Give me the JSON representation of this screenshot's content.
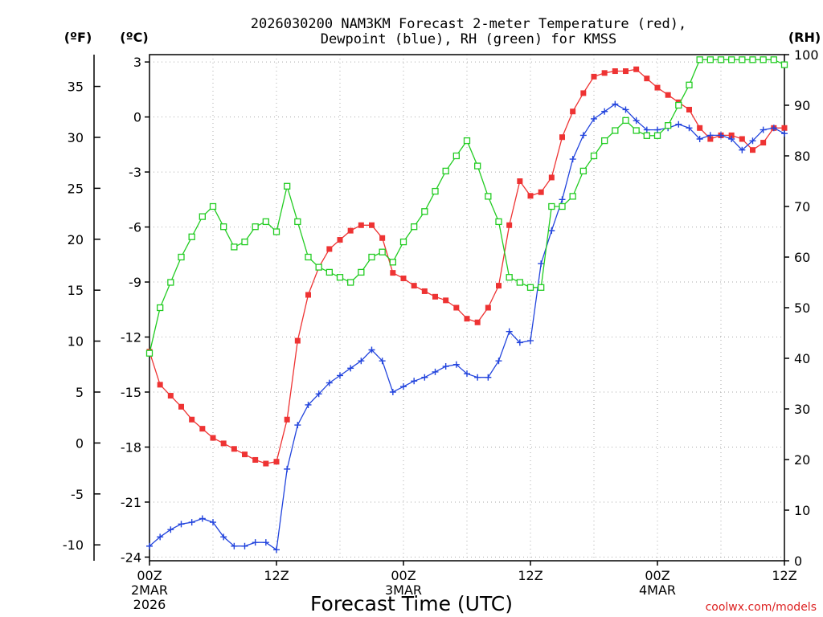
{
  "chart_data": {
    "type": "line",
    "title": "2026030200 NAM3KM Forecast 2-meter Temperature (red), Dewpoint (blue), RH (green) for KMSS",
    "title_lines": [
      "2026030200 NAM3KM Forecast 2-meter Temperature (red),",
      "Dewpoint (blue), RH (green) for KMSS"
    ],
    "xlabel": "Forecast Time (UTC)",
    "credit": "coolwx.com/models",
    "x_hours_range": [
      0,
      60
    ],
    "x_ticks": [
      {
        "hour": 0,
        "label": "00Z",
        "sub": [
          "2MAR",
          "2026"
        ]
      },
      {
        "hour": 12,
        "label": "12Z",
        "sub": []
      },
      {
        "hour": 24,
        "label": "00Z",
        "sub": [
          "3MAR"
        ]
      },
      {
        "hour": 36,
        "label": "12Z",
        "sub": []
      },
      {
        "hour": 48,
        "label": "00Z",
        "sub": [
          "4MAR"
        ]
      },
      {
        "hour": 60,
        "label": "12Z",
        "sub": []
      }
    ],
    "axes": {
      "fahrenheit": {
        "label": "(ºF)",
        "ticks": [
          35,
          30,
          25,
          20,
          15,
          10,
          5,
          0,
          -5,
          -10
        ]
      },
      "celsius": {
        "label": "(ºC)",
        "range": [
          -24.2,
          3.4
        ],
        "ticks": [
          3,
          0,
          -3,
          -6,
          -9,
          -12,
          -15,
          -18,
          -21,
          -24
        ]
      },
      "rh": {
        "label": "(RH)",
        "range": [
          0,
          100
        ],
        "ticks": [
          100,
          90,
          80,
          70,
          60,
          50,
          40,
          30,
          20,
          10,
          0
        ]
      }
    },
    "series": [
      {
        "name": "2-meter Temperature",
        "color": "#ee3333",
        "marker": "filled-square",
        "axis": "celsius",
        "x": [
          0,
          1,
          2,
          3,
          4,
          5,
          6,
          7,
          8,
          9,
          10,
          11,
          12,
          13,
          14,
          15,
          16,
          17,
          18,
          19,
          20,
          21,
          22,
          23,
          24,
          25,
          26,
          27,
          28,
          29,
          30,
          31,
          32,
          33,
          34,
          35,
          36,
          37,
          38,
          39,
          40,
          41,
          42,
          43,
          44,
          45,
          46,
          47,
          48,
          49,
          50,
          51,
          52,
          53,
          54,
          55,
          56,
          57,
          58,
          59,
          60
        ],
        "values": [
          -12.8,
          -14.6,
          -15.2,
          -15.8,
          -16.5,
          -17.0,
          -17.5,
          -17.8,
          -18.1,
          -18.4,
          -18.7,
          -18.9,
          -18.8,
          -16.5,
          -12.2,
          -9.7,
          -8.2,
          -7.2,
          -6.7,
          -6.2,
          -5.9,
          -5.9,
          -6.6,
          -8.5,
          -8.8,
          -9.2,
          -9.5,
          -9.8,
          -10.0,
          -10.4,
          -11.0,
          -11.2,
          -10.4,
          -9.2,
          -5.9,
          -3.5,
          -4.3,
          -4.1,
          -3.3,
          -1.1,
          0.3,
          1.3,
          2.2,
          2.4,
          2.5,
          2.5,
          2.6,
          2.1,
          1.6,
          1.2,
          0.8,
          0.4,
          -0.6,
          -1.2,
          -1.0,
          -1.0,
          -1.2,
          -1.8,
          -1.4,
          -0.6,
          -0.6
        ]
      },
      {
        "name": "Dewpoint",
        "color": "#2244dd",
        "marker": "plus",
        "axis": "celsius",
        "x": [
          0,
          1,
          2,
          3,
          4,
          5,
          6,
          7,
          8,
          9,
          10,
          11,
          12,
          13,
          14,
          15,
          16,
          17,
          18,
          19,
          20,
          21,
          22,
          23,
          24,
          25,
          26,
          27,
          28,
          29,
          30,
          31,
          32,
          33,
          34,
          35,
          36,
          37,
          38,
          39,
          40,
          41,
          42,
          43,
          44,
          45,
          46,
          47,
          48,
          49,
          50,
          51,
          52,
          53,
          54,
          55,
          56,
          57,
          58,
          59,
          60
        ],
        "values": [
          -23.4,
          -22.9,
          -22.5,
          -22.2,
          -22.1,
          -21.9,
          -22.1,
          -22.9,
          -23.4,
          -23.4,
          -23.2,
          -23.2,
          -23.6,
          -19.2,
          -16.8,
          -15.7,
          -15.1,
          -14.5,
          -14.1,
          -13.7,
          -13.3,
          -12.7,
          -13.3,
          -15.0,
          -14.7,
          -14.4,
          -14.2,
          -13.9,
          -13.6,
          -13.5,
          -14.0,
          -14.2,
          -14.2,
          -13.3,
          -11.7,
          -12.3,
          -12.2,
          -8.0,
          -6.2,
          -4.5,
          -2.3,
          -1.0,
          -0.1,
          0.3,
          0.7,
          0.4,
          -0.2,
          -0.7,
          -0.7,
          -0.6,
          -0.4,
          -0.6,
          -1.2,
          -1.0,
          -1.0,
          -1.2,
          -1.8,
          -1.3,
          -0.7,
          -0.6,
          -0.9
        ]
      },
      {
        "name": "RH",
        "color": "#22cc22",
        "marker": "open-square",
        "axis": "rh",
        "x": [
          0,
          1,
          2,
          3,
          4,
          5,
          6,
          7,
          8,
          9,
          10,
          11,
          12,
          13,
          14,
          15,
          16,
          17,
          18,
          19,
          20,
          21,
          22,
          23,
          24,
          25,
          26,
          27,
          28,
          29,
          30,
          31,
          32,
          33,
          34,
          35,
          36,
          37,
          38,
          39,
          40,
          41,
          42,
          43,
          44,
          45,
          46,
          47,
          48,
          49,
          50,
          51,
          52,
          53,
          54,
          55,
          56,
          57,
          58,
          59,
          60
        ],
        "values": [
          41,
          50,
          55,
          60,
          64,
          68,
          70,
          66,
          62,
          63,
          66,
          67,
          65,
          74,
          67,
          60,
          58,
          57,
          56,
          55,
          57,
          60,
          61,
          59,
          63,
          66,
          69,
          73,
          77,
          80,
          83,
          78,
          72,
          67,
          56,
          55,
          54,
          54,
          70,
          70,
          72,
          77,
          80,
          83,
          85,
          87,
          85,
          84,
          84,
          86,
          90,
          94,
          99,
          99,
          99,
          99,
          99,
          99,
          99,
          99,
          98
        ]
      }
    ]
  }
}
